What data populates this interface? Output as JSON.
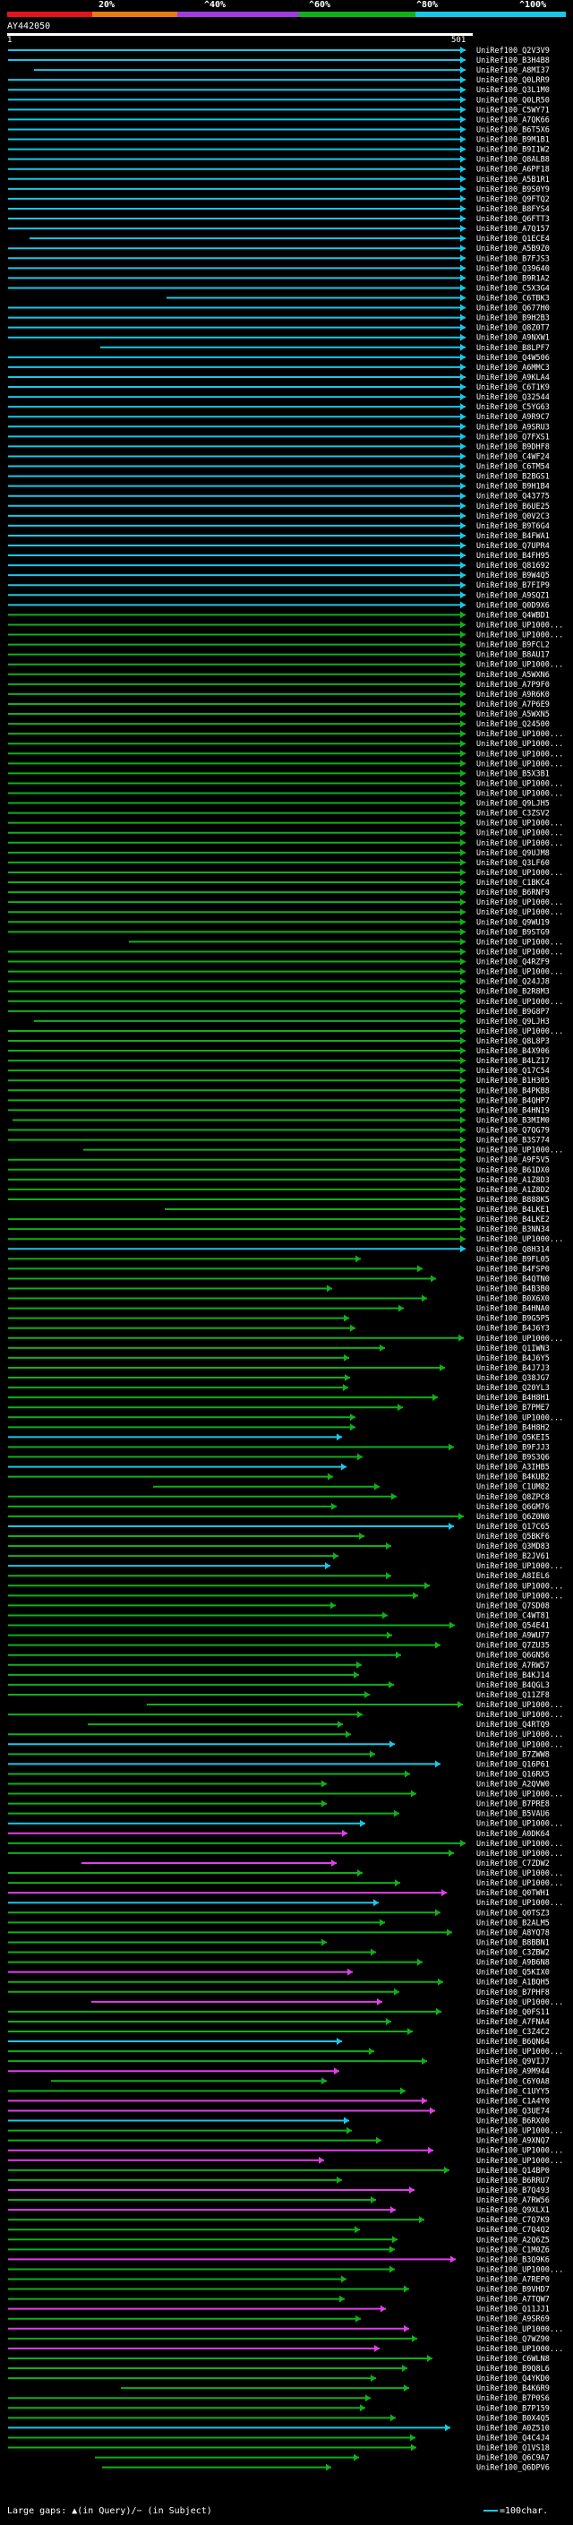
{
  "header": {
    "ticks": [
      "20%",
      "^40%",
      "^60%",
      "^80%",
      "^100%"
    ],
    "legend_colors": [
      "#e0161c",
      "#e87a14",
      "#a13be0",
      "#10b018",
      "#18c8e8"
    ],
    "query_name": "AY442050",
    "query_start": "1",
    "query_end": "501"
  },
  "footer": {
    "text": "Large gaps: ▲(in Query)/− (in Subject)",
    "scale": "=100char."
  },
  "hits": [
    "UniRef100_Q2V3V9",
    "UniRef100_B3H4B8",
    "UniRef100_A8MI37",
    "UniRef100_Q0LRR9",
    "UniRef100_Q3L1M0",
    "UniRef100_Q0LR50",
    "UniRef100_C5WY71",
    "UniRef100_A7QK66",
    "UniRef100_B6T5X6",
    "UniRef100_B9M1B1",
    "UniRef100_B9I1W2",
    "UniRef100_Q8ALB8",
    "UniRef100_A6PF18",
    "UniRef100_A5B1R1",
    "UniRef100_B9S0Y9",
    "UniRef100_Q9FTQ2",
    "UniRef100_B8FYS4",
    "UniRef100_Q6FTT3",
    "UniRef100_A7Q157",
    "UniRef100_Q1ECE4",
    "UniRef100_A5B9Z0",
    "UniRef100_B7FJS3",
    "UniRef100_Q39640",
    "UniRef100_B9R1A2",
    "UniRef100_C5X3G4",
    "UniRef100_C6TBK3",
    "UniRef100_Q677H0",
    "UniRef100_B9H2B3",
    "UniRef100_Q8Z0T7",
    "UniRef100_A9NXW1",
    "UniRef100_B8LPF7",
    "UniRef100_Q4W506",
    "UniRef100_A6MMC3",
    "UniRef100_A9KLA4",
    "UniRef100_C6T1K9",
    "UniRef100_Q32544",
    "UniRef100_C5YG63",
    "UniRef100_A9R9C7",
    "UniRef100_A9SRU3",
    "UniRef100_Q7FXS1",
    "UniRef100_B9DHF8",
    "UniRef100_C4WF24",
    "UniRef100_C6TM54",
    "UniRef100_B2BGS1",
    "UniRef100_B9H1B4",
    "UniRef100_Q43775",
    "UniRef100_B6UE25",
    "UniRef100_Q0V2C3",
    "UniRef100_B9T6G4",
    "UniRef100_B4FWA1",
    "UniRef100_Q7UPR4",
    "UniRef100_B4FH95",
    "UniRef100_Q81692",
    "UniRef100_B9W4Q5",
    "UniRef100_B7FIP9",
    "UniRef100_A9SQZ1",
    "UniRef100_Q0D9X6",
    "UniRef100_Q4WBD1",
    "UniRef100_UP1000...",
    "UniRef100_UP1000...",
    "UniRef100_B9FCL2",
    "UniRef100_B8AU17",
    "UniRef100_UP1000...",
    "UniRef100_A5WXN6",
    "UniRef100_A7P9F0",
    "UniRef100_A9R6K0",
    "UniRef100_A7P6E9",
    "UniRef100_A5WXN5",
    "UniRef100_Q24500",
    "UniRef100_UP1000...",
    "UniRef100_UP1000...",
    "UniRef100_UP1000...",
    "UniRef100_UP1000...",
    "UniRef100_B5X3B1",
    "UniRef100_UP1000...",
    "UniRef100_UP1000...",
    "UniRef100_Q9LJH5",
    "UniRef100_C3ZSV2",
    "UniRef100_UP1000...",
    "UniRef100_UP1000...",
    "UniRef100_UP1000...",
    "UniRef100_Q9UJM8",
    "UniRef100_Q3LF60",
    "UniRef100_UP1000...",
    "UniRef100_C1BKC4",
    "UniRef100_B6RNF9",
    "UniRef100_UP1000...",
    "UniRef100_UP1000...",
    "UniRef100_Q9WU19",
    "UniRef100_B9STG9",
    "UniRef100_UP1000...",
    "UniRef100_UP1000...",
    "UniRef100_Q4RZF9",
    "UniRef100_UP1000...",
    "UniRef100_Q24JJ8",
    "UniRef100_B2R8M3",
    "UniRef100_UP1000...",
    "UniRef100_B9G8P7",
    "UniRef100_Q9LJH3",
    "UniRef100_UP1000...",
    "UniRef100_Q8L8P3",
    "UniRef100_B4X906",
    "UniRef100_B4LZ17",
    "UniRef100_Q17C54",
    "UniRef100_B1H305",
    "UniRef100_B4PKB8",
    "UniRef100_B4QHP7",
    "UniRef100_B4HN19",
    "UniRef100_B3MIM0",
    "UniRef100_Q7QG79",
    "UniRef100_B3S774",
    "UniRef100_UP1000...",
    "UniRef100_A9F5V5",
    "UniRef100_B61DX0",
    "UniRef100_A1Z8D3",
    "UniRef100_A1Z8D2",
    "UniRef100_B888K5",
    "UniRef100_B4LKE1",
    "UniRef100_B4LKE2",
    "UniRef100_B3NN34",
    "UniRef100_UP1000...",
    "UniRef100_Q8H314",
    "UniRef100_B9FL05",
    "UniRef100_B4FSP0",
    "UniRef100_B4QTN0",
    "UniRef100_B4B3B0",
    "UniRef100_B0X6X0",
    "UniRef100_B4HNA0",
    "UniRef100_B9G5P5",
    "UniRef100_B4J6Y3",
    "UniRef100_UP1000...",
    "UniRef100_Q1IWN3",
    "UniRef100_B4J6Y5",
    "UniRef100_B4J7J3",
    "UniRef100_Q38JG7",
    "UniRef100_Q20YL3",
    "UniRef100_B4H8H1",
    "UniRef100_B7PME7",
    "UniRef100_UP1000...",
    "UniRef100_B4H8H2",
    "UniRef100_Q5KEI5",
    "UniRef100_B9FJJ3",
    "UniRef100_B9S3Q6",
    "UniRef100_A3IHB5",
    "UniRef100_B4KUB2",
    "UniRef100_C1UM82",
    "UniRef100_Q8ZPC8",
    "UniRef100_Q6GM76",
    "UniRef100_Q6Z0N0",
    "UniRef100_Q17C65",
    "UniRef100_Q5BKF6",
    "UniRef100_Q3MD83",
    "UniRef100_B2JV61",
    "UniRef100_UP1000...",
    "UniRef100_A8IEL6",
    "UniRef100_UP1000...",
    "UniRef100_UP1000...",
    "UniRef100_Q7SD08",
    "UniRef100_C4WT81",
    "UniRef100_Q54E41",
    "UniRef100_A9WU77",
    "UniRef100_Q7ZU35",
    "UniRef100_Q6GN56",
    "UniRef100_A7RW57",
    "UniRef100_B4KJ14",
    "UniRef100_B4QGL3",
    "UniRef100_Q11ZF8",
    "UniRef100_UP1000...",
    "UniRef100_UP1000...",
    "UniRef100_Q4RTQ9",
    "UniRef100_UP1000...",
    "UniRef100_UP1000...",
    "UniRef100_B7ZWW8",
    "UniRef100_Q16P61",
    "UniRef100_Q16RX5",
    "UniRef100_A2QVW0",
    "UniRef100_UP1000...",
    "UniRef100_B7PRE8",
    "UniRef100_B5VAU6",
    "UniRef100_UP1000...",
    "UniRef100_A0DK64",
    "UniRef100_UP1000...",
    "UniRef100_UP1000...",
    "UniRef100_C7ZDW2",
    "UniRef100_UP1000...",
    "UniRef100_UP1000...",
    "UniRef100_Q0TWH1",
    "UniRef100_UP1000...",
    "UniRef100_Q0TSZ3",
    "UniRef100_B2ALM5",
    "UniRef100_A8YQ78",
    "UniRef100_B8BBN1",
    "UniRef100_C3ZBW2",
    "UniRef100_A9B6N8",
    "UniRef100_Q5KIX0",
    "UniRef100_A1BQH5",
    "UniRef100_B7PHF8",
    "UniRef100_UP1000...",
    "UniRef100_Q0FS11",
    "UniRef100_A7FNA4",
    "UniRef100_C3Z4C2",
    "UniRef100_B6QN64",
    "UniRef100_UP1000...",
    "UniRef100_Q9VIJ7",
    "UniRef100_A9M944",
    "UniRef100_C6Y0A8",
    "UniRef100_C1UYY5",
    "UniRef100_C1A4Y0",
    "UniRef100_Q3UE74",
    "UniRef100_B6RX00",
    "UniRef100_UP1000...",
    "UniRef100_A9XNQ7",
    "UniRef100_UP1000...",
    "UniRef100_UP1000...",
    "UniRef100_Q14BP0",
    "UniRef100_B6RRU7",
    "UniRef100_B7Q493",
    "UniRef100_A7RW56",
    "UniRef100_Q9XLX1",
    "UniRef100_C7Q7K9",
    "UniRef100_C7Q4Q2",
    "UniRef100_A2Q6Z5",
    "UniRef100_C1M0Z6",
    "UniRef100_B3Q9K6",
    "UniRef100_UP1000...",
    "UniRef100_A7REP0",
    "UniRef100_B9VHD7",
    "UniRef100_A7TQW7",
    "UniRef100_Q11JJ1",
    "UniRef100_A9SR69",
    "UniRef100_UP1000...",
    "UniRef100_Q7WZ90",
    "UniRef100_UP1000...",
    "UniRef100_C6WLN8",
    "UniRef100_B9Q8L6",
    "UniRef100_Q4YKD0",
    "UniRef100_B4K6R9",
    "UniRef100_B7P0S6",
    "UniRef100_B7P159",
    "UniRef100_B0X4Q5",
    "UniRef100_A0Z510",
    "UniRef100_Q4C4J4",
    "UniRef100_Q1VS18",
    "UniRef100_Q6C9A7",
    "UniRef100_Q6DPV6"
  ]
}
